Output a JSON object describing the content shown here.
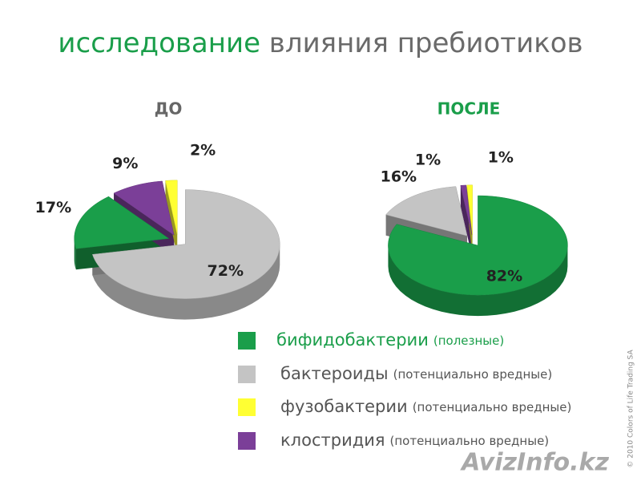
{
  "title": {
    "highlight": "исследование",
    "rest": "влияния пребиотиков"
  },
  "legend": [
    {
      "name": "бифидобактерии",
      "note": "(полезные)",
      "color": "#1a9e4a"
    },
    {
      "name": "бактероиды",
      "note": "(потенциально вредные)",
      "color": "#c4c4c4"
    },
    {
      "name": "фузобактерии",
      "note": "(потенциально вредные)",
      "color": "#ffff33"
    },
    {
      "name": "клостридия",
      "note": "(потенциально вредные)",
      "color": "#7b3f98"
    }
  ],
  "chart_data": [
    {
      "type": "pie",
      "title": "ДО",
      "values": [
        17,
        72,
        2,
        9
      ],
      "value_labels": [
        "17%",
        "72%",
        "2%",
        "9%"
      ]
    },
    {
      "type": "pie",
      "title": "ПОСЛЕ",
      "values": [
        82,
        16,
        1,
        1
      ],
      "value_labels": [
        "82%",
        "16%",
        "1%",
        "1%"
      ]
    }
  ],
  "copyright": "© 2010 Colors of Life Trading SA",
  "watermark": "AvizInfo.kz"
}
